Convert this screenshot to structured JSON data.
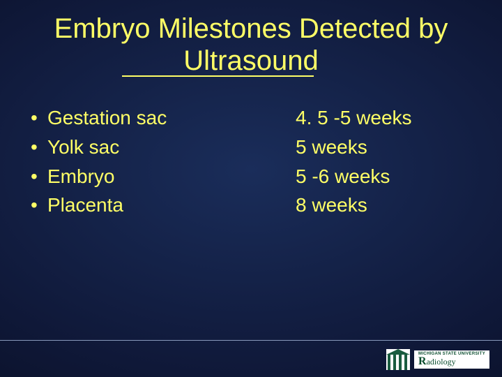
{
  "slide": {
    "title": "Embryo Milestones Detected by Ultrasound",
    "background_gradient": {
      "inner": "#1a2d5a",
      "mid": "#0f1838",
      "outer": "#060a1a"
    },
    "text_color": "#ffff66",
    "title_fontsize": 40,
    "body_fontsize": 28,
    "milestones": [
      {
        "label": "Gestation sac",
        "timing": "4. 5 -5 weeks"
      },
      {
        "label": "Yolk sac",
        "timing": "5 weeks"
      },
      {
        "label": "Embryo",
        "timing": "5 -6 weeks"
      },
      {
        "label": "Placenta",
        "timing": "8 weeks"
      }
    ]
  },
  "footer": {
    "university": "MICHIGAN STATE UNIVERSITY",
    "dept_big_r": "R",
    "dept_rest": "adiology"
  }
}
